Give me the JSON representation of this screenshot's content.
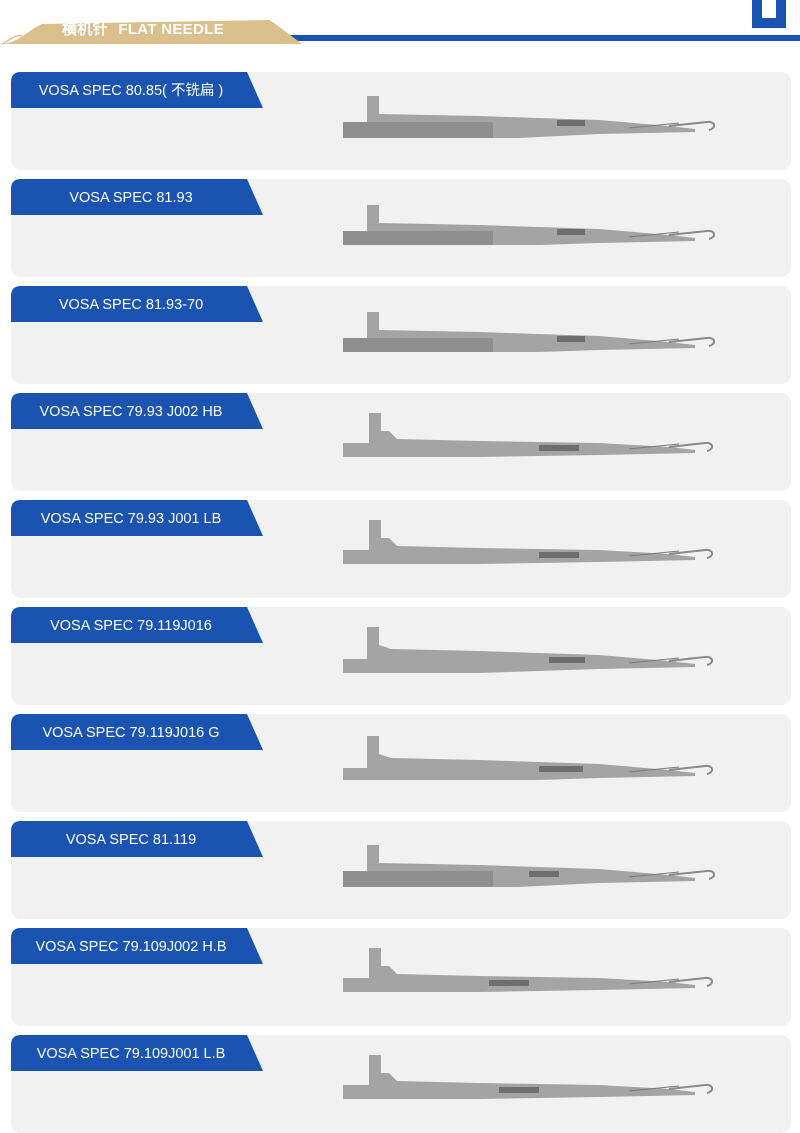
{
  "header": {
    "title_cn": "横机针",
    "title_en": "FLAT NEEDLE",
    "colors": {
      "gold": "#d9c08d",
      "blue": "#1a54b0"
    }
  },
  "products": [
    {
      "name": "VOSA SPEC 80.85( 不铣扁 )",
      "image": "flat-needle-photo"
    },
    {
      "name": "VOSA SPEC 81.93",
      "image": "flat-needle-photo"
    },
    {
      "name": "VOSA SPEC 81.93-70",
      "image": "flat-needle-photo"
    },
    {
      "name": "VOSA SPEC 79.93 J002 HB",
      "image": "flat-needle-photo"
    },
    {
      "name": "VOSA SPEC 79.93 J001 LB",
      "image": "flat-needle-photo"
    },
    {
      "name": "VOSA SPEC 79.119J016",
      "image": "flat-needle-photo"
    },
    {
      "name": "VOSA SPEC 79.119J016 G",
      "image": "flat-needle-photo"
    },
    {
      "name": "VOSA SPEC 81.119",
      "image": "flat-needle-photo"
    },
    {
      "name": "VOSA SPEC 79.109J002 H.B",
      "image": "flat-needle-photo"
    },
    {
      "name": "VOSA SPEC 79.109J001 L.B",
      "image": "flat-needle-photo"
    }
  ]
}
